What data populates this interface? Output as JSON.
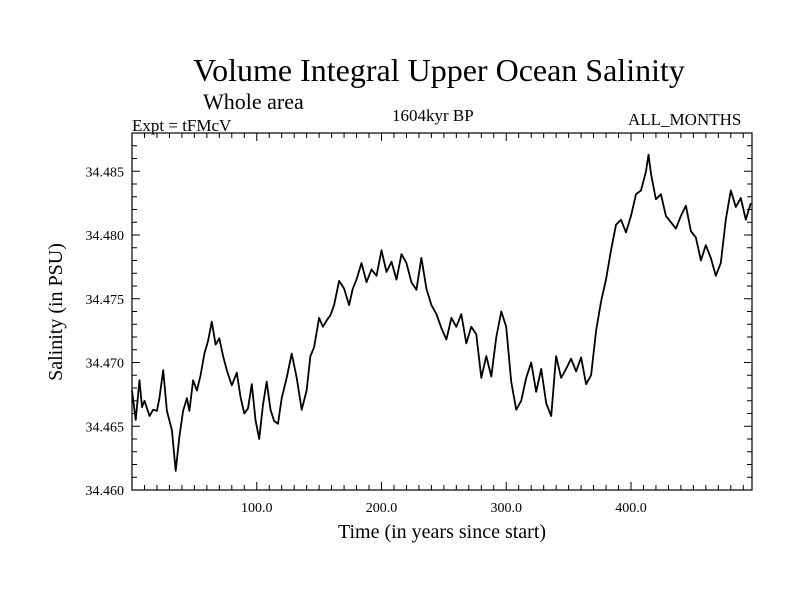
{
  "header": {
    "title": "Volume Integral Upper Ocean Salinity",
    "subtitle": "Whole area",
    "experiment": "Expt = tFMcV",
    "period": "1604kyr BP",
    "months": "ALL_MONTHS"
  },
  "chart_data": {
    "type": "line",
    "title": "Volume Integral Upper Ocean Salinity",
    "xlabel": "Time (in years since start)",
    "ylabel": "Salinity (in PSU)",
    "xlim": [
      0,
      497
    ],
    "ylim": [
      34.46,
      34.488
    ],
    "xticks": [
      100,
      200,
      300,
      400
    ],
    "xtick_labels": [
      "100.0",
      "200.0",
      "300.0",
      "400.0"
    ],
    "yticks": [
      34.46,
      34.465,
      34.47,
      34.475,
      34.48,
      34.485
    ],
    "ytick_labels": [
      "34.460",
      "34.465",
      "34.470",
      "34.475",
      "34.480",
      "34.485"
    ],
    "grid": false,
    "series": [
      {
        "name": "Salinity",
        "color": "#000000",
        "x": [
          0,
          3,
          6,
          8,
          10,
          14,
          17,
          20,
          22,
          25,
          28,
          32,
          35,
          38,
          41,
          44,
          46,
          49,
          52,
          55,
          58,
          61,
          64,
          67,
          70,
          73,
          76,
          80,
          84,
          87,
          90,
          93,
          96,
          99,
          102,
          105,
          108,
          111,
          114,
          117,
          120,
          124,
          128,
          132,
          136,
          140,
          143,
          146,
          150,
          153,
          156,
          159,
          162,
          166,
          170,
          174,
          177,
          180,
          184,
          188,
          192,
          196,
          200,
          204,
          208,
          212,
          216,
          220,
          224,
          228,
          232,
          236,
          240,
          244,
          248,
          252,
          256,
          260,
          264,
          268,
          272,
          276,
          280,
          284,
          288,
          292,
          296,
          300,
          304,
          308,
          312,
          316,
          320,
          324,
          328,
          332,
          336,
          340,
          344,
          348,
          352,
          356,
          360,
          364,
          368,
          372,
          376,
          380,
          384,
          388,
          392,
          396,
          400,
          404,
          408,
          412,
          414,
          416,
          420,
          424,
          428,
          432,
          436,
          440,
          444,
          448,
          452,
          456,
          460,
          464,
          468,
          472,
          476,
          480,
          484,
          488,
          492,
          496
        ],
        "values": [
          34.4678,
          34.4655,
          34.4686,
          34.4665,
          34.467,
          34.4658,
          34.4663,
          34.4662,
          34.4672,
          34.4694,
          34.4662,
          34.4647,
          34.4615,
          34.4642,
          34.4662,
          34.4672,
          34.4662,
          34.4686,
          34.4678,
          34.469,
          34.4707,
          34.4717,
          34.4732,
          34.4714,
          34.4719,
          34.4705,
          34.4694,
          34.4682,
          34.4692,
          34.4673,
          34.466,
          34.4664,
          34.4683,
          34.4655,
          34.464,
          34.4667,
          34.4685,
          34.4663,
          34.4654,
          34.4652,
          34.4672,
          34.4688,
          34.4707,
          34.4688,
          34.4663,
          34.4678,
          34.4705,
          34.4712,
          34.4735,
          34.4728,
          34.4733,
          34.4737,
          34.4745,
          34.4764,
          34.4758,
          34.4745,
          34.4758,
          34.4765,
          34.4778,
          34.4763,
          34.4773,
          34.4768,
          34.4788,
          34.4771,
          34.4779,
          34.4765,
          34.4785,
          34.4778,
          34.4763,
          34.4757,
          34.4782,
          34.4758,
          34.4745,
          34.4738,
          34.4727,
          34.4718,
          34.4735,
          34.4728,
          34.4738,
          34.4715,
          34.4728,
          34.4722,
          34.4688,
          34.4705,
          34.4689,
          34.472,
          34.474,
          34.4728,
          34.4685,
          34.4663,
          34.467,
          34.4688,
          34.47,
          34.4677,
          34.4695,
          34.4668,
          34.4658,
          34.4705,
          34.4688,
          34.4695,
          34.4703,
          34.4693,
          34.4704,
          34.4683,
          34.469,
          34.4725,
          34.4748,
          34.4765,
          34.4788,
          34.4808,
          34.4812,
          34.4802,
          34.4815,
          34.4832,
          34.4835,
          34.485,
          34.4863,
          34.4848,
          34.4828,
          34.4832,
          34.4815,
          34.481,
          34.4805,
          34.4815,
          34.4823,
          34.4803,
          34.4798,
          34.478,
          34.4792,
          34.4782,
          34.4768,
          34.4778,
          34.4812,
          34.4835,
          34.4822,
          34.4829,
          34.4812,
          34.4825
        ]
      }
    ]
  }
}
